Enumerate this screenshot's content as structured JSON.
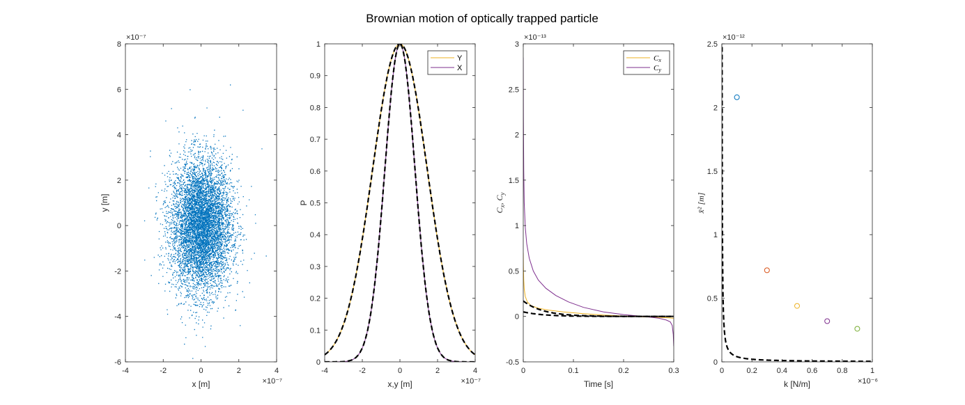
{
  "figure": {
    "title": "Brownian motion of optically trapped particle"
  },
  "colors": {
    "blue": "#0072BD",
    "orange": "#D95319",
    "yellow": "#EDB120",
    "purple": "#7E2F8E",
    "green": "#77AC30",
    "dashed": "#000000"
  },
  "chart_data": [
    {
      "type": "scatter",
      "title": "",
      "xlabel": "x [m]",
      "ylabel": "y [m]",
      "xlim": [
        -4e-07,
        4e-07
      ],
      "ylim": [
        -6e-07,
        8e-07
      ],
      "x_ticks": [
        "-4",
        "-2",
        "0",
        "2",
        "4"
      ],
      "y_ticks": [
        "-6",
        "-4",
        "-2",
        "0",
        "2",
        "4",
        "6",
        "8"
      ],
      "x_exponent": "×10⁻⁷",
      "y_exponent": "×10⁻⁷",
      "distribution": {
        "mean_x": 0,
        "mean_y": 0,
        "std_x": 8e-08,
        "std_y": 1.45e-07,
        "n_points": 9000
      },
      "outliers": [
        {
          "x": -6e-08,
          "y": 6e-07
        },
        {
          "x": 2.2e-07,
          "y": 5.1e-07
        },
        {
          "x": -3e-07,
          "y": -1.5e-07
        },
        {
          "x": 2.8e-07,
          "y": -1.2e-07
        },
        {
          "x": -2.7e-07,
          "y": 3.3e-07
        },
        {
          "x": 3.2e-07,
          "y": 3.4e-07
        },
        {
          "x": -9e-08,
          "y": -5.2e-07
        },
        {
          "x": 2e-08,
          "y": -5.3e-07
        }
      ],
      "color": "blue"
    },
    {
      "type": "line",
      "title": "",
      "xlabel": "x,y [m]",
      "ylabel": "P",
      "xlim": [
        -4e-07,
        4e-07
      ],
      "ylim": [
        0,
        1
      ],
      "x_ticks": [
        "-4",
        "-2",
        "0",
        "2",
        "4"
      ],
      "y_ticks": [
        "0",
        "0.1",
        "0.2",
        "0.3",
        "0.4",
        "0.5",
        "0.6",
        "0.7",
        "0.8",
        "0.9",
        "1"
      ],
      "x_exponent": "×10⁻⁷",
      "legend": {
        "entries": [
          "Y",
          "X"
        ],
        "placement": "top-right"
      },
      "series": [
        {
          "name": "Y",
          "model": "gaussian",
          "sigma": 1.45e-07,
          "color": "yellow"
        },
        {
          "name": "X",
          "model": "gaussian",
          "sigma": 8e-08,
          "color": "purple"
        }
      ],
      "fits": [
        {
          "model": "gaussian",
          "sigma": 1.45e-07,
          "style": "dashed"
        },
        {
          "model": "gaussian",
          "sigma": 8e-08,
          "style": "dashed"
        }
      ]
    },
    {
      "type": "line",
      "title": "",
      "xlabel": "Time [s]",
      "ylabel": "C_x, C_y",
      "xlim": [
        0,
        0.3
      ],
      "ylim": [
        -5e-14,
        3e-13
      ],
      "x_ticks": [
        "0",
        "0.1",
        "0.2",
        "0.3"
      ],
      "y_ticks": [
        "-0.5",
        "0",
        "0.5",
        "1",
        "1.5",
        "2",
        "2.5",
        "3"
      ],
      "y_exponent": "×10⁻¹³",
      "legend": {
        "entries": [
          "C_x",
          "C_y"
        ],
        "placement": "top-right"
      },
      "series": [
        {
          "name": "C_x",
          "color": "yellow",
          "t": [
            0,
            0.0003,
            0.001,
            0.002,
            0.004,
            0.008,
            0.015,
            0.03,
            0.05,
            0.08,
            0.12,
            0.16,
            0.2,
            0.24,
            0.27,
            0.29,
            0.297,
            0.3
          ],
          "v": [
            0.7,
            0.55,
            0.4,
            0.3,
            0.22,
            0.16,
            0.12,
            0.09,
            0.07,
            0.05,
            0.03,
            0.015,
            0.005,
            -0.005,
            -0.01,
            -0.015,
            -0.02,
            -0.02
          ]
        },
        {
          "name": "C_y",
          "color": "purple",
          "t": [
            0,
            0.0003,
            0.001,
            0.002,
            0.004,
            0.007,
            0.012,
            0.02,
            0.03,
            0.045,
            0.065,
            0.09,
            0.12,
            0.16,
            0.2,
            0.24,
            0.27,
            0.285,
            0.293,
            0.297,
            0.299,
            0.3
          ],
          "v": [
            2.85,
            2.2,
            1.6,
            1.25,
            0.98,
            0.8,
            0.64,
            0.5,
            0.4,
            0.31,
            0.23,
            0.16,
            0.1,
            0.05,
            0.02,
            0.0,
            -0.02,
            -0.04,
            -0.06,
            -0.1,
            -0.2,
            -0.33
          ]
        }
      ],
      "fits": [
        {
          "model": "exponential",
          "amplitude": 0.17,
          "tau": 0.04,
          "style": "dashed"
        },
        {
          "model": "exponential",
          "amplitude": 0.05,
          "tau": 0.04,
          "style": "dashed"
        }
      ]
    },
    {
      "type": "scatter",
      "title": "",
      "xlabel": "k [N/m]",
      "ylabel": "x̄² [m]",
      "xlim": [
        0,
        1e-06
      ],
      "ylim": [
        0,
        2.5e-12
      ],
      "x_ticks": [
        "0",
        "0.2",
        "0.4",
        "0.6",
        "0.8",
        "1"
      ],
      "y_ticks": [
        "0",
        "0.5",
        "1",
        "1.5",
        "2",
        "2.5"
      ],
      "x_exponent": "×10⁻⁶",
      "y_exponent": "×10⁻¹²",
      "points": [
        {
          "k": 1e-07,
          "msd": 2.08e-12,
          "color": "blue"
        },
        {
          "k": 3e-07,
          "msd": 7.2e-13,
          "color": "orange"
        },
        {
          "k": 5e-07,
          "msd": 4.4e-13,
          "color": "yellow"
        },
        {
          "k": 7e-07,
          "msd": 3.2e-13,
          "color": "purple"
        },
        {
          "k": 9e-07,
          "msd": 2.6e-13,
          "color": "green"
        }
      ],
      "fit": {
        "model": "inverse",
        "c": 4.1e-21,
        "style": "dashed"
      }
    }
  ]
}
